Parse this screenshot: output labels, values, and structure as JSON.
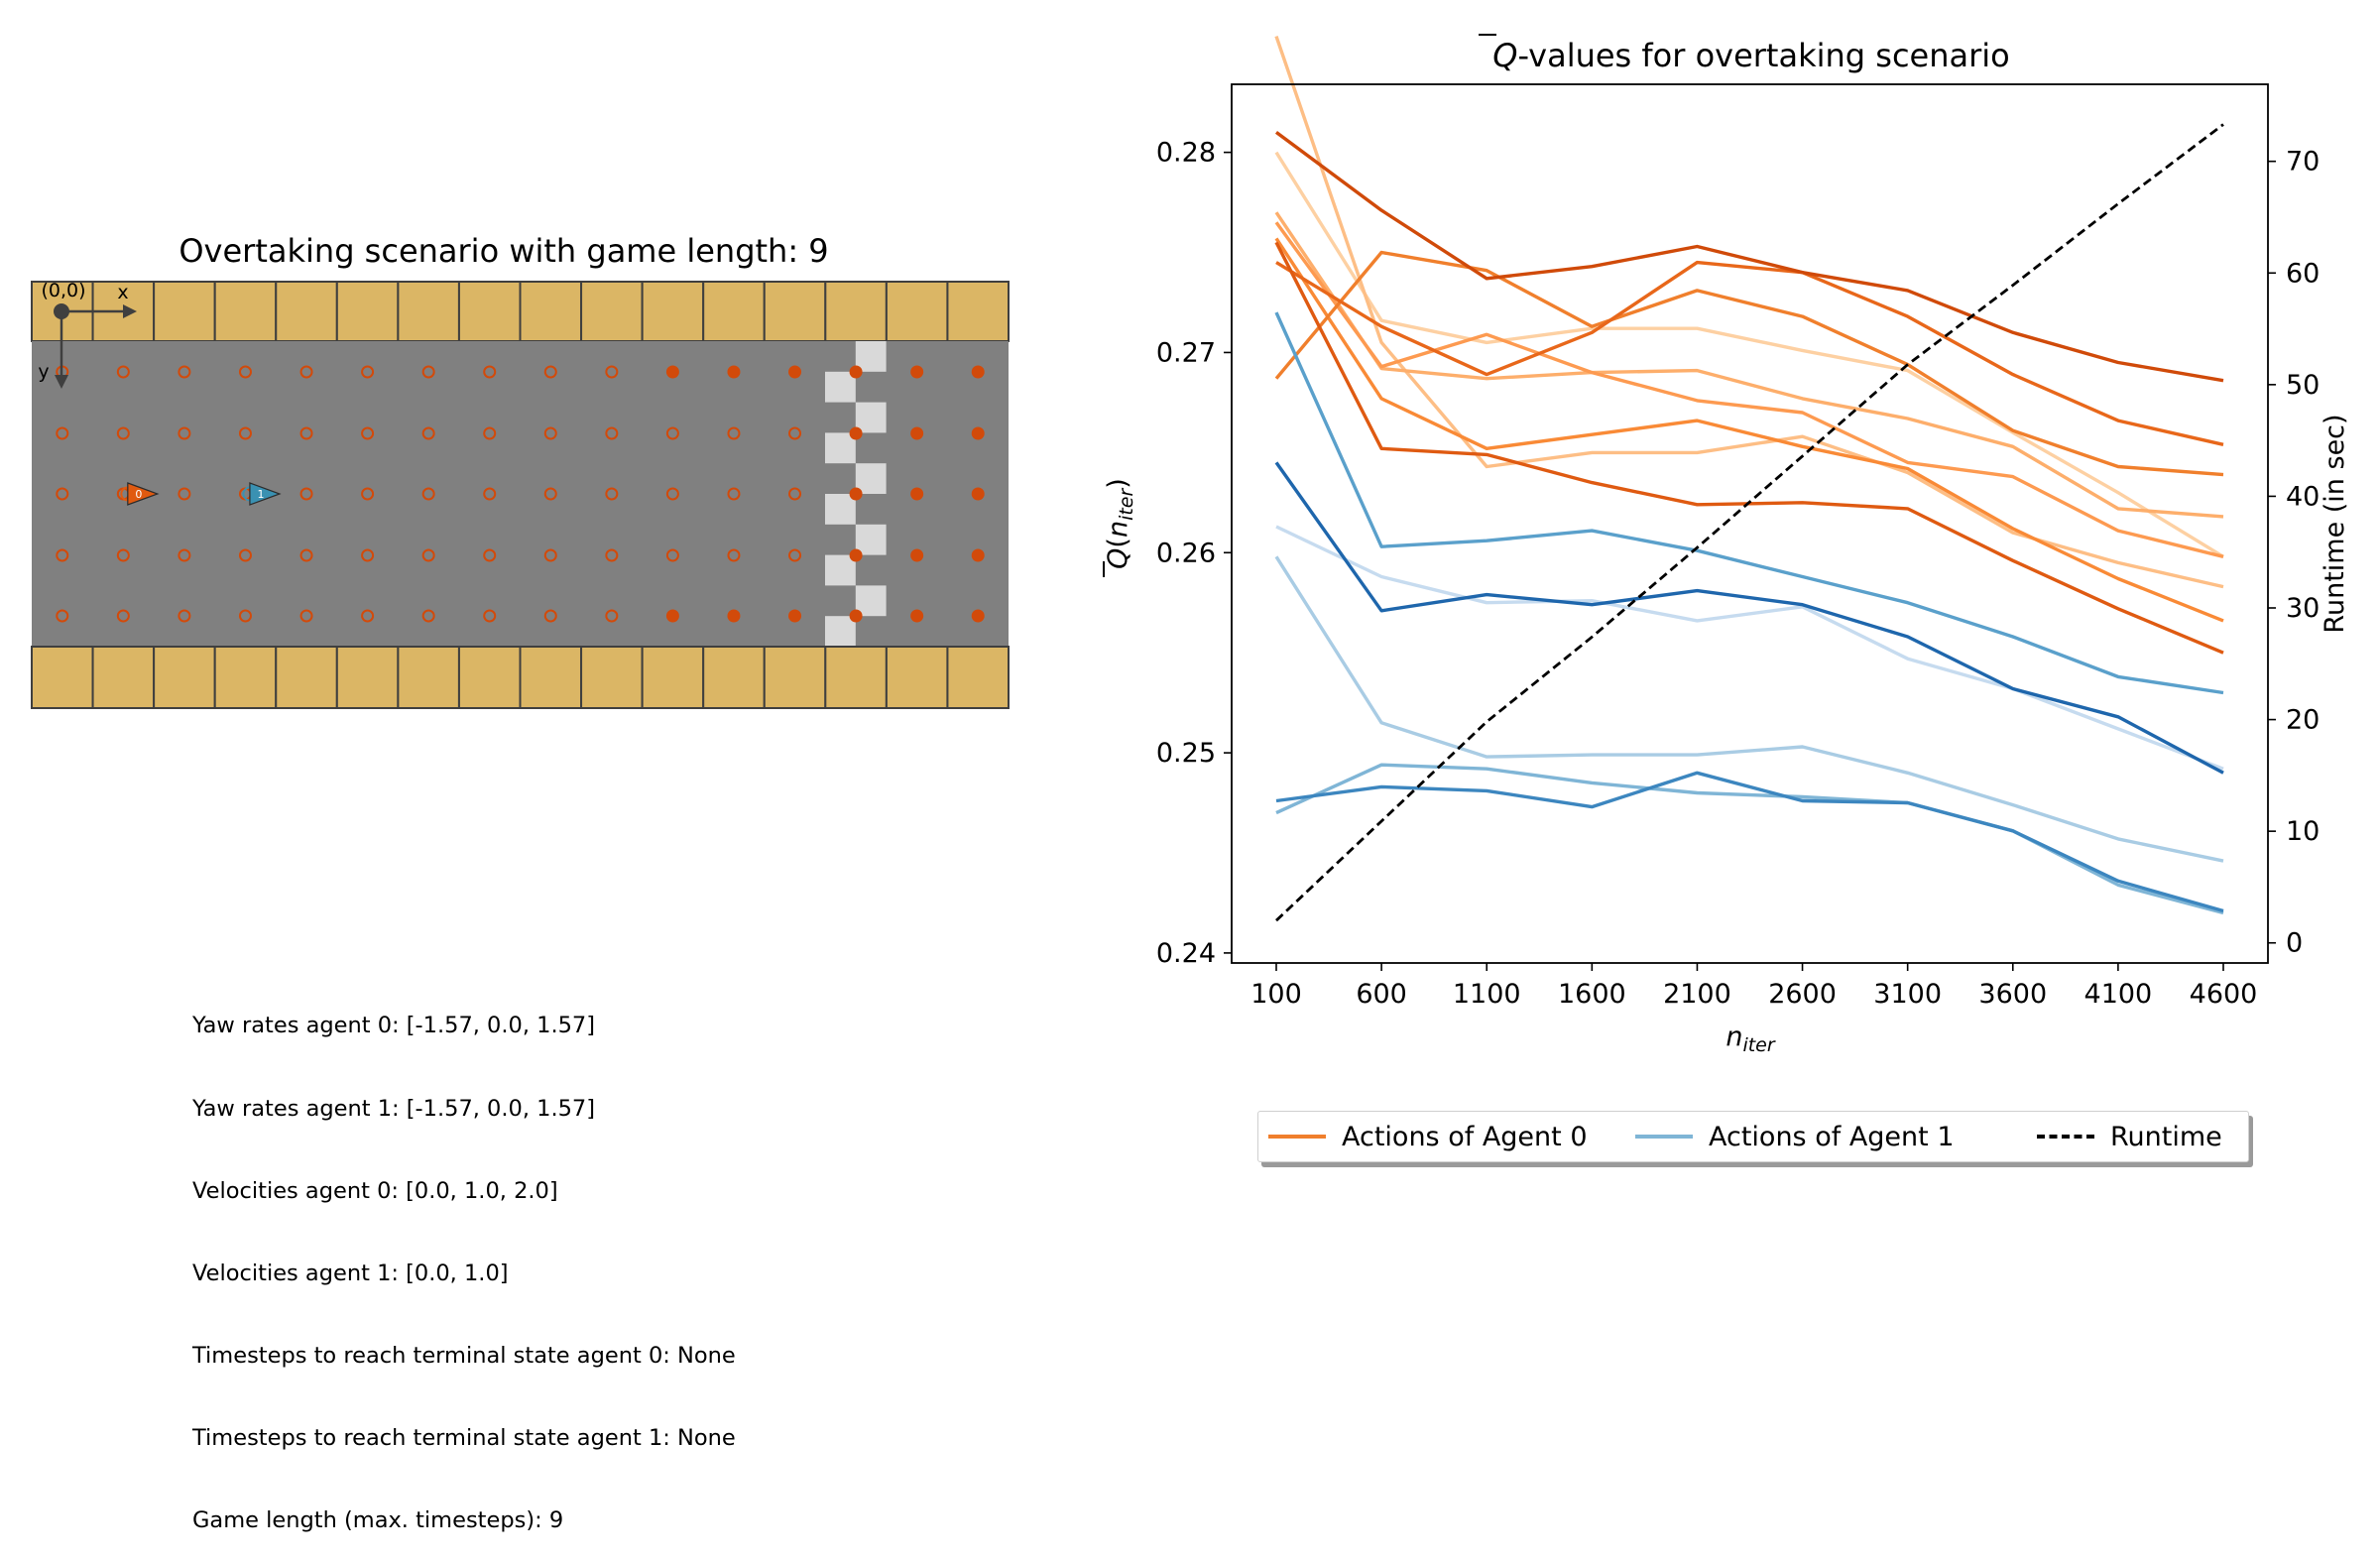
{
  "scenario_panel": {
    "title": "Overtaking scenario with game length: 9",
    "origin_label": "(0,0)",
    "x_axis_label": "x",
    "y_axis_label": "y",
    "grid_columns": 16,
    "lane_rows": 5,
    "colors": {
      "road": "#808080",
      "border_block": "#dbb665",
      "border_edge": "#3f3f3f",
      "point_fill": "#d24a0a",
      "checker_light": "#d9d9d9",
      "agent_0": "#e05a10",
      "agent_1": "#3a91b2"
    },
    "agents": [
      {
        "name": "agent 0",
        "label": "0",
        "column": 1.3,
        "row": 2
      },
      {
        "name": "agent 1",
        "label": "1",
        "column": 3.3,
        "row": 2
      }
    ],
    "filled_point_columns_outer_rows": [
      10,
      11,
      12,
      13,
      14,
      15
    ],
    "filled_point_columns_inner_rows": [
      13,
      14,
      15
    ]
  },
  "info_lines": [
    "Yaw rates agent 0: [-1.57, 0.0, 1.57]",
    "Yaw rates agent 1: [-1.57, 0.0, 1.57]",
    "Velocities agent 0: [0.0, 1.0, 2.0]",
    "Velocities agent 1: [0.0, 1.0]",
    "Timesteps to reach terminal state agent 0: None",
    "Timesteps to reach terminal state agent 1: None",
    "Game length (max. timesteps): 9"
  ],
  "legend": {
    "entries": [
      {
        "label": "Actions of Agent 0",
        "color": "#f07f2c",
        "style": "solid"
      },
      {
        "label": "Actions of Agent 1",
        "color": "#7fb5d6",
        "style": "solid"
      },
      {
        "label": "Runtime",
        "color": "#000000",
        "style": "dashed"
      }
    ]
  },
  "chart_data": {
    "type": "line",
    "title": "Q̄-values for overtaking scenario",
    "title_symbol": "Q",
    "title_rest": "-values for overtaking scenario",
    "xlabel": "n",
    "xlabel_sub": "iter",
    "ylabel": "Q̄(n_iter)",
    "ylabel_symbol": "Q",
    "ylabel_n": "n",
    "ylabel_sub": "iter",
    "y2label": "Runtime (in sec)",
    "categories": [
      "100",
      "600",
      "1100",
      "1600",
      "2100",
      "2600",
      "3100",
      "3600",
      "4100",
      "4600"
    ],
    "ylim": [
      0.2395,
      0.2834
    ],
    "yticks": [
      0.24,
      0.25,
      0.26,
      0.27,
      0.28
    ],
    "ytick_labels": [
      "0.24",
      "0.25",
      "0.26",
      "0.27",
      "0.28"
    ],
    "y2lim": [
      -1.8,
      76.9
    ],
    "y2ticks": [
      0,
      10,
      20,
      30,
      40,
      50,
      60,
      70
    ],
    "grid": false,
    "legend_position": "below",
    "series": [
      {
        "group": "agent0",
        "color": "#fdd0a2",
        "values": [
          0.28,
          0.2716,
          0.2705,
          0.2712,
          0.2712,
          0.2701,
          0.2691,
          0.266,
          0.263,
          0.2598
        ]
      },
      {
        "group": "agent0",
        "color": "#fdbe85",
        "values": [
          0.2858,
          0.2705,
          0.2643,
          0.265,
          0.265,
          0.2658,
          0.264,
          0.261,
          0.2595,
          0.2583
        ]
      },
      {
        "group": "agent0",
        "color": "#fdae6b",
        "values": [
          0.277,
          0.2692,
          0.2687,
          0.269,
          0.2691,
          0.2677,
          0.2667,
          0.2653,
          0.2622,
          0.2618
        ]
      },
      {
        "group": "agent0",
        "color": "#fd9a50",
        "values": [
          0.2765,
          0.2693,
          0.2709,
          0.269,
          0.2676,
          0.267,
          0.2645,
          0.2638,
          0.2611,
          0.2598
        ]
      },
      {
        "group": "agent0",
        "color": "#f98a36",
        "values": [
          0.2757,
          0.2677,
          0.2652,
          0.2659,
          0.2666,
          0.2653,
          0.2642,
          0.2612,
          0.2587,
          0.2566
        ]
      },
      {
        "group": "agent0",
        "color": "#f07f2c",
        "values": [
          0.2687,
          0.275,
          0.2741,
          0.2713,
          0.2731,
          0.2718,
          0.2694,
          0.2661,
          0.2643,
          0.2639
        ]
      },
      {
        "group": "agent0",
        "color": "#e8671a",
        "values": [
          0.2745,
          0.2713,
          0.2689,
          0.271,
          0.2745,
          0.274,
          0.2718,
          0.2689,
          0.2666,
          0.2654
        ]
      },
      {
        "group": "agent0",
        "color": "#df5a11",
        "values": [
          0.2755,
          0.2652,
          0.2649,
          0.2635,
          0.2624,
          0.2625,
          0.2622,
          0.2596,
          0.2572,
          0.255
        ]
      },
      {
        "group": "agent0",
        "color": "#d04a09",
        "values": [
          0.281,
          0.2771,
          0.2737,
          0.2743,
          0.2753,
          0.274,
          0.2731,
          0.271,
          0.2695,
          0.2686
        ]
      },
      {
        "group": "agent1",
        "color": "#c6dbef",
        "values": [
          0.2613,
          0.2588,
          0.2575,
          0.2576,
          0.2566,
          0.2573,
          0.2547,
          0.2532,
          0.2512,
          0.2492
        ]
      },
      {
        "group": "agent1",
        "color": "#a9cce4",
        "values": [
          0.2598,
          0.2515,
          0.2498,
          0.2499,
          0.2499,
          0.2503,
          0.249,
          0.2474,
          0.2457,
          0.2446
        ]
      },
      {
        "group": "agent1",
        "color": "#7fb5d6",
        "values": [
          0.247,
          0.2494,
          0.2492,
          0.2485,
          0.248,
          0.2478,
          0.2475,
          0.2461,
          0.2434,
          0.242
        ]
      },
      {
        "group": "agent1",
        "color": "#5aa0cb",
        "values": [
          0.272,
          0.2603,
          0.2606,
          0.2611,
          0.2601,
          0.2588,
          0.2575,
          0.2558,
          0.2538,
          0.253
        ]
      },
      {
        "group": "agent1",
        "color": "#3c86bf",
        "values": [
          0.2476,
          0.2483,
          0.2481,
          0.2473,
          0.249,
          0.2476,
          0.2475,
          0.2461,
          0.2436,
          0.2421
        ]
      },
      {
        "group": "agent1",
        "color": "#1e66ac",
        "values": [
          0.2645,
          0.2571,
          0.2579,
          0.2574,
          0.2581,
          0.2574,
          0.2558,
          0.2532,
          0.2518,
          0.249
        ]
      },
      {
        "group": "runtime",
        "name": "Runtime",
        "color": "#000000",
        "dashed": true,
        "axis": "right",
        "values": [
          2.0,
          10.9,
          19.8,
          27.4,
          35.4,
          43.6,
          51.8,
          58.9,
          66.2,
          73.3
        ]
      }
    ]
  }
}
